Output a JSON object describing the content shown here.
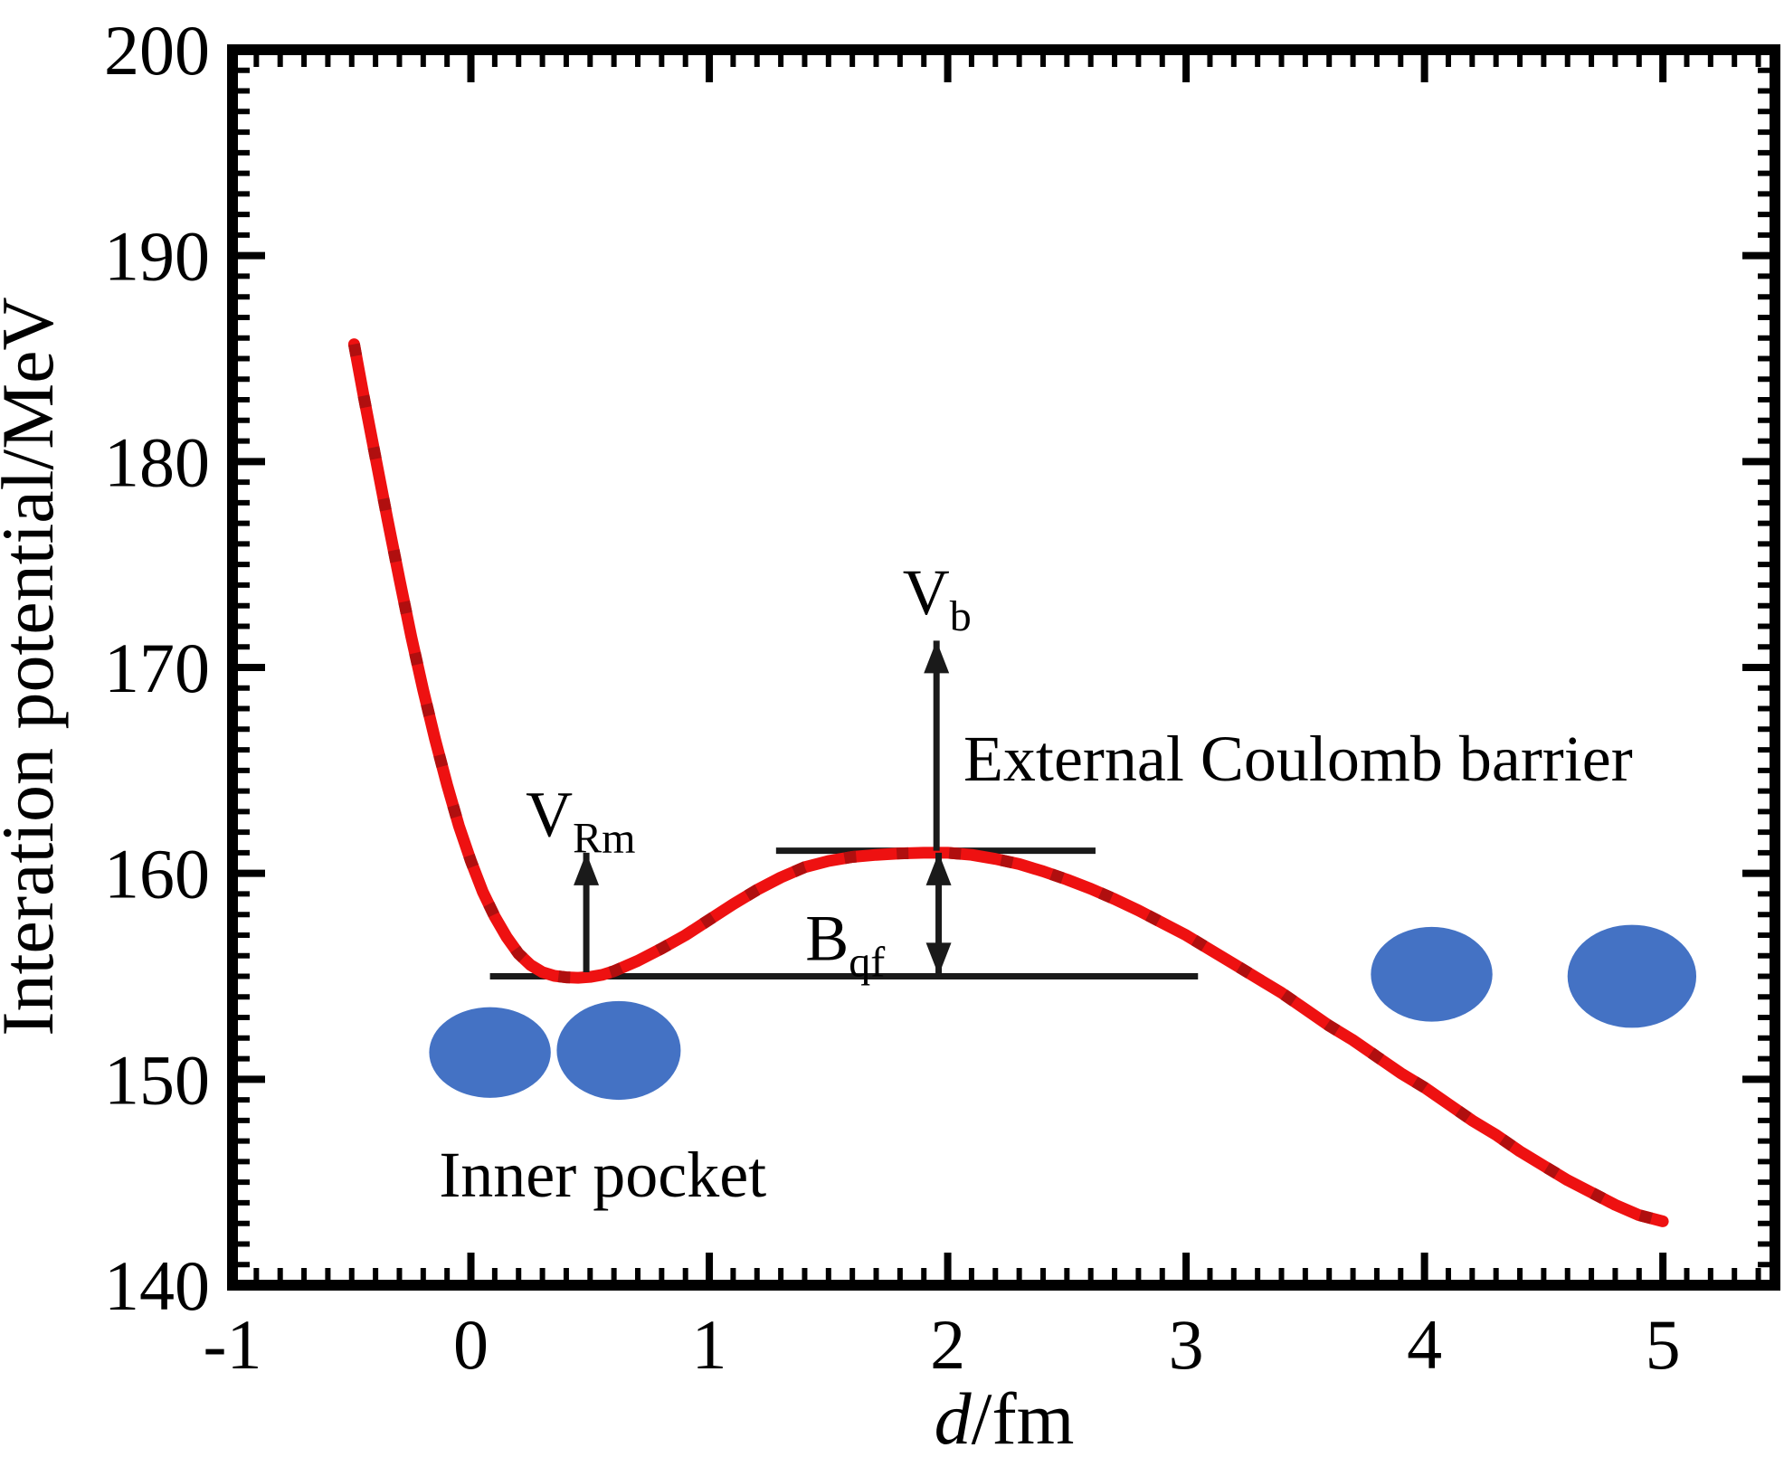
{
  "colors": {
    "background": "#ffffff",
    "axis": "#000000",
    "curve": "#ee1111",
    "curve_marker": "#b00f0f",
    "nucleus_fill": "#4472c4",
    "annotation_line": "#1a1a1a",
    "text": "#000000"
  },
  "chart_data": {
    "type": "line",
    "title": "",
    "xlabel": "d/fm",
    "xlabel_italic_part": "d",
    "xlabel_unit_part": "/fm",
    "ylabel": "Interation potential/MeV",
    "xlim": [
      -1,
      5.47
    ],
    "ylim": [
      140,
      200
    ],
    "grid": false,
    "legend": "none",
    "x_major_ticks": [
      -1,
      0,
      1,
      2,
      3,
      4,
      5
    ],
    "x_tick_labels": [
      "-1",
      "0",
      "1",
      "2",
      "3",
      "4",
      "5"
    ],
    "y_major_ticks": [
      140,
      150,
      160,
      170,
      180,
      190,
      200
    ],
    "y_tick_labels": [
      "140",
      "150",
      "160",
      "170",
      "180",
      "190",
      "200"
    ],
    "x_minor_step": 0.1,
    "y_minor_step": 1,
    "series": [
      {
        "name": "interaction-potential-curve",
        "color": "#ee1111",
        "points": [
          [
            -0.49,
            185.7
          ],
          [
            -0.45,
            183.2
          ],
          [
            -0.4,
            180.2
          ],
          [
            -0.35,
            177.2
          ],
          [
            -0.3,
            174.3
          ],
          [
            -0.25,
            171.5
          ],
          [
            -0.2,
            168.9
          ],
          [
            -0.15,
            166.5
          ],
          [
            -0.1,
            164.3
          ],
          [
            -0.05,
            162.3
          ],
          [
            0.0,
            160.6
          ],
          [
            0.05,
            159.1
          ],
          [
            0.1,
            157.9
          ],
          [
            0.15,
            156.9
          ],
          [
            0.2,
            156.1
          ],
          [
            0.25,
            155.55
          ],
          [
            0.3,
            155.2
          ],
          [
            0.35,
            155.02
          ],
          [
            0.4,
            154.95
          ],
          [
            0.45,
            154.93
          ],
          [
            0.5,
            154.97
          ],
          [
            0.55,
            155.07
          ],
          [
            0.6,
            155.25
          ],
          [
            0.7,
            155.75
          ],
          [
            0.8,
            156.35
          ],
          [
            0.9,
            157.0
          ],
          [
            1.0,
            157.75
          ],
          [
            1.1,
            158.5
          ],
          [
            1.2,
            159.2
          ],
          [
            1.3,
            159.8
          ],
          [
            1.4,
            160.3
          ],
          [
            1.5,
            160.6
          ],
          [
            1.6,
            160.8
          ],
          [
            1.7,
            160.9
          ],
          [
            1.8,
            160.97
          ],
          [
            1.9,
            161.0
          ],
          [
            2.0,
            161.0
          ],
          [
            2.1,
            160.9
          ],
          [
            2.2,
            160.7
          ],
          [
            2.3,
            160.45
          ],
          [
            2.4,
            160.1
          ],
          [
            2.5,
            159.7
          ],
          [
            2.6,
            159.25
          ],
          [
            2.7,
            158.75
          ],
          [
            2.8,
            158.2
          ],
          [
            2.9,
            157.6
          ],
          [
            3.0,
            157.0
          ],
          [
            3.1,
            156.3
          ],
          [
            3.2,
            155.6
          ],
          [
            3.3,
            154.9
          ],
          [
            3.4,
            154.2
          ],
          [
            3.5,
            153.4
          ],
          [
            3.6,
            152.6
          ],
          [
            3.7,
            151.9
          ],
          [
            3.8,
            151.1
          ],
          [
            3.9,
            150.3
          ],
          [
            4.0,
            149.6
          ],
          [
            4.1,
            148.8
          ],
          [
            4.2,
            148.0
          ],
          [
            4.3,
            147.3
          ],
          [
            4.4,
            146.5
          ],
          [
            4.5,
            145.8
          ],
          [
            4.6,
            145.1
          ],
          [
            4.7,
            144.5
          ],
          [
            4.8,
            143.9
          ],
          [
            4.9,
            143.4
          ],
          [
            5.0,
            143.1
          ]
        ]
      }
    ],
    "reference_levels": {
      "barrier_top_MeV": 161,
      "pocket_bottom_MeV": 155,
      "lines": [
        {
          "name": "barrier-top-line",
          "V": 161.1,
          "d_from": 1.28,
          "d_to": 2.62
        },
        {
          "name": "pocket-level-line",
          "V": 155.0,
          "d_from": 0.08,
          "d_to": 3.05
        }
      ]
    },
    "arrows": [
      {
        "name": "v-rm-arrow",
        "d": 0.484,
        "V_from": 155.2,
        "V_to": 161.0,
        "heads": "end"
      },
      {
        "name": "v-b-arrow",
        "d": 1.953,
        "V_from": 161.1,
        "V_to": 171.3,
        "heads": "end"
      },
      {
        "name": "b-qf-arrow",
        "d": 1.962,
        "V_from": 161.0,
        "V_to": 155.05,
        "heads": "both"
      }
    ],
    "annotations": [
      {
        "name": "v-rm-label",
        "main": "V",
        "sub": "Rm",
        "d": 0.46,
        "V": 161.8,
        "anchor": "middle"
      },
      {
        "name": "v-b-label",
        "main": "V",
        "sub": "b",
        "d": 1.955,
        "V": 172.6,
        "anchor": "middle"
      },
      {
        "name": "b-qf-label",
        "main": "B",
        "sub": "qf",
        "d": 1.57,
        "V": 155.8,
        "anchor": "middle"
      },
      {
        "name": "external-coulomb-barrier-label",
        "text": "External Coulomb barrier",
        "d": 2.066,
        "V": 164.5,
        "anchor": "start"
      },
      {
        "name": "inner-pocket-label",
        "text": "Inner pocket",
        "d": 0.553,
        "V": 144.3,
        "anchor": "middle"
      }
    ],
    "nuclei": [
      {
        "name": "nucleus-left-1",
        "d": 0.08,
        "V": 151.3,
        "rx_d": 0.255,
        "ry_MeV": 2.2
      },
      {
        "name": "nucleus-left-2",
        "d": 0.62,
        "V": 151.4,
        "rx_d": 0.26,
        "ry_MeV": 2.4
      },
      {
        "name": "nucleus-right-1",
        "d": 4.03,
        "V": 155.1,
        "rx_d": 0.255,
        "ry_MeV": 2.3
      },
      {
        "name": "nucleus-right-2",
        "d": 4.87,
        "V": 155.0,
        "rx_d": 0.27,
        "ry_MeV": 2.5
      }
    ]
  }
}
